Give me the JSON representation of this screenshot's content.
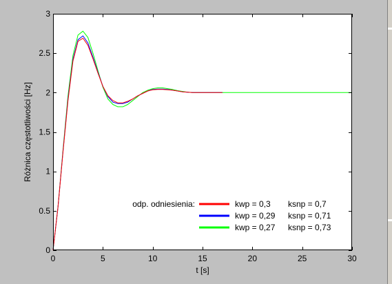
{
  "chart_data": {
    "type": "line",
    "xlabel": "t [s]",
    "ylabel": "Różnica częstotliwości [Hz]",
    "xlim": [
      0,
      30
    ],
    "ylim": [
      0,
      3
    ],
    "xticks": [
      0,
      5,
      10,
      15,
      20,
      25,
      30
    ],
    "xtick_labels": [
      "0",
      "5",
      "10",
      "15",
      "20",
      "25",
      "30"
    ],
    "yticks": [
      0,
      0.5,
      1,
      1.5,
      2,
      2.5,
      3
    ],
    "ytick_labels": [
      "0",
      "0.5",
      "1",
      "1.5",
      "2",
      "2.5",
      "3"
    ],
    "grid": false,
    "legend": {
      "placement": "bottom-right",
      "title": "odp. odniesienia:",
      "entries": [
        {
          "kwp": "kwp = 0,3",
          "ksnp": "ksnp = 0,7",
          "color": "#ff0000"
        },
        {
          "kwp": "kwp = 0,29",
          "ksnp": "ksnp = 0,71",
          "color": "#0000ff"
        },
        {
          "kwp": "kwp = 0,27",
          "ksnp": "ksnp = 0,73",
          "color": "#00ff00"
        }
      ]
    },
    "series": [
      {
        "color": "#ff0000",
        "x": [
          0,
          0.5,
          1,
          1.5,
          2,
          2.5,
          3,
          3.5,
          4,
          4.5,
          5,
          5.5,
          6,
          6.5,
          7,
          7.5,
          8,
          8.5,
          9,
          9.5,
          10,
          10.5,
          11,
          11.5,
          12,
          12.5,
          13,
          13.5,
          14,
          14.5,
          15,
          16,
          17
        ],
        "y": [
          0,
          0.55,
          1.25,
          1.9,
          2.4,
          2.65,
          2.69,
          2.6,
          2.43,
          2.25,
          2.08,
          1.96,
          1.9,
          1.87,
          1.87,
          1.89,
          1.92,
          1.96,
          1.99,
          2.02,
          2.035,
          2.04,
          2.04,
          2.035,
          2.03,
          2.02,
          2.01,
          2.005,
          2.0,
          2.0,
          2.0,
          2.0,
          2.0
        ]
      },
      {
        "color": "#0000ff",
        "x": [
          0,
          0.5,
          1,
          1.5,
          2,
          2.5,
          3,
          3.5,
          4,
          4.5,
          5,
          5.5,
          6,
          6.5,
          7,
          7.5,
          8,
          8.5,
          9,
          9.5,
          10,
          10.5,
          11,
          11.5,
          12,
          12.5,
          13,
          13.5,
          14,
          14.5,
          15,
          16,
          17
        ],
        "y": [
          0,
          0.55,
          1.26,
          1.92,
          2.42,
          2.67,
          2.72,
          2.63,
          2.45,
          2.26,
          2.08,
          1.95,
          1.88,
          1.86,
          1.86,
          1.88,
          1.92,
          1.96,
          1.99,
          2.02,
          2.04,
          2.045,
          2.045,
          2.04,
          2.03,
          2.02,
          2.01,
          2.005,
          2.0,
          2.0,
          2.0,
          2.0,
          2.0
        ]
      },
      {
        "color": "#00ff00",
        "x": [
          0,
          0.5,
          1,
          1.5,
          2,
          2.5,
          3,
          3.5,
          4,
          4.5,
          5,
          5.5,
          6,
          6.5,
          7,
          7.5,
          8,
          8.5,
          9,
          9.5,
          10,
          10.5,
          11,
          11.5,
          12,
          12.5,
          13,
          13.5,
          14,
          14.5,
          15,
          16,
          17,
          18,
          20,
          22,
          24,
          26,
          28,
          30
        ],
        "y": [
          0,
          0.55,
          1.28,
          1.96,
          2.47,
          2.73,
          2.78,
          2.7,
          2.5,
          2.28,
          2.07,
          1.92,
          1.85,
          1.82,
          1.82,
          1.85,
          1.9,
          1.95,
          2.0,
          2.03,
          2.05,
          2.06,
          2.06,
          2.05,
          2.04,
          2.025,
          2.015,
          2.005,
          2.0,
          2.0,
          2.0,
          2.0,
          2.0,
          2.0,
          2.0,
          2.0,
          2.0,
          2.0,
          2.0,
          2.0
        ]
      }
    ]
  }
}
